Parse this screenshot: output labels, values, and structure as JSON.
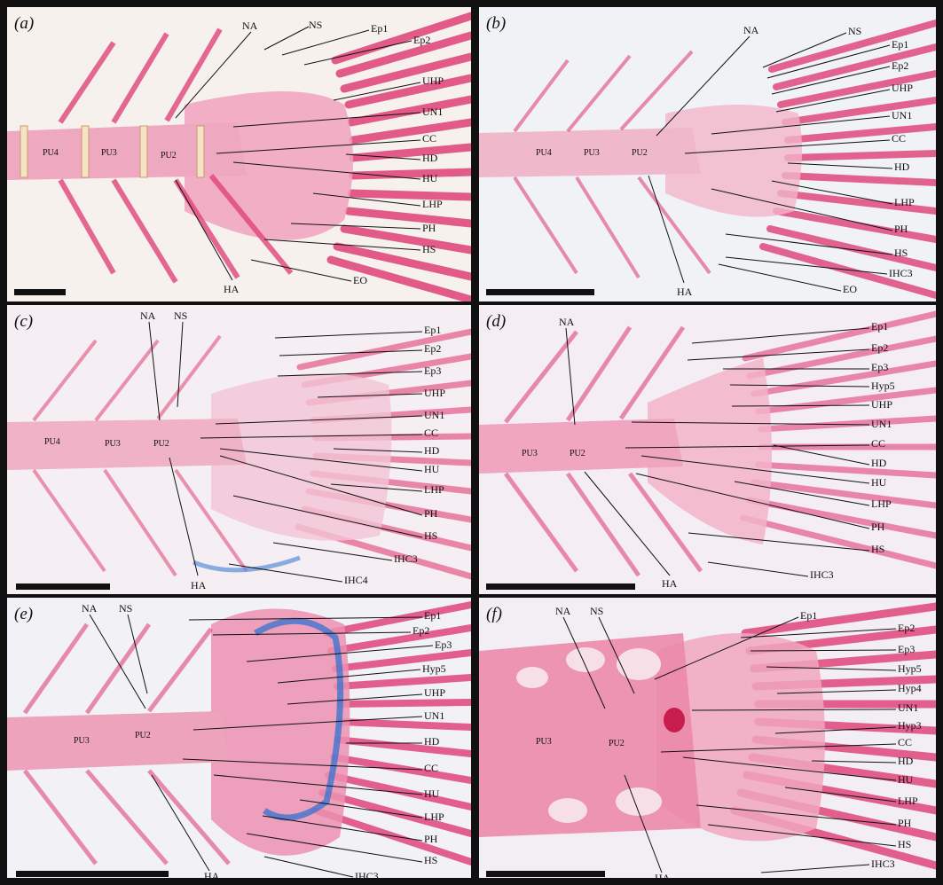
{
  "colors": {
    "stain_red": "#e0457a",
    "stain_light": "#f2b7cc",
    "stain_blue": "#4f86d6",
    "background": "#f6f2f4",
    "frame": "#111111"
  },
  "panels": [
    {
      "label": "(a)",
      "vertebrae": [
        "PU4",
        "PU3",
        "PU2"
      ],
      "labels": [
        "NA",
        "NS",
        "Ep1",
        "Ep2",
        "UHP",
        "UN1",
        "CC",
        "HD",
        "HU",
        "LHP",
        "PH",
        "HS",
        "HA",
        "EO"
      ]
    },
    {
      "label": "(b)",
      "vertebrae": [
        "PU4",
        "PU3",
        "PU2"
      ],
      "labels": [
        "NA",
        "NS",
        "Ep1",
        "Ep2",
        "UHP",
        "UN1",
        "CC",
        "HD",
        "LHP",
        "PH",
        "HS",
        "IHC3",
        "HA",
        "EO"
      ]
    },
    {
      "label": "(c)",
      "vertebrae": [
        "PU4",
        "PU3",
        "PU2"
      ],
      "labels": [
        "NA",
        "NS",
        "Ep1",
        "Ep2",
        "Ep3",
        "UHP",
        "UN1",
        "CC",
        "HD",
        "HU",
        "LHP",
        "PH",
        "HS",
        "IHC3",
        "HA",
        "IHC4"
      ]
    },
    {
      "label": "(d)",
      "vertebrae": [
        "PU3",
        "PU2"
      ],
      "labels": [
        "NA",
        "Ep1",
        "Ep2",
        "Ep3",
        "Hyp5",
        "UHP",
        "UN1",
        "CC",
        "HD",
        "HU",
        "LHP",
        "PH",
        "HS",
        "HA",
        "IHC3"
      ]
    },
    {
      "label": "(e)",
      "vertebrae": [
        "PU3",
        "PU2"
      ],
      "labels": [
        "NA",
        "NS",
        "Ep1",
        "Ep2",
        "Ep3",
        "Hyp5",
        "UHP",
        "UN1",
        "HD",
        "CC",
        "HU",
        "LHP",
        "PH",
        "HS",
        "IHC3",
        "HA"
      ]
    },
    {
      "label": "(f)",
      "vertebrae": [
        "PU3",
        "PU2"
      ],
      "labels": [
        "NA",
        "NS",
        "Ep1",
        "Ep2",
        "Ep3",
        "Hyp5",
        "Hyp4",
        "UN1",
        "Hyp3",
        "CC",
        "HD",
        "HU",
        "LHP",
        "PH",
        "HS",
        "IHC3",
        "HA"
      ]
    }
  ]
}
